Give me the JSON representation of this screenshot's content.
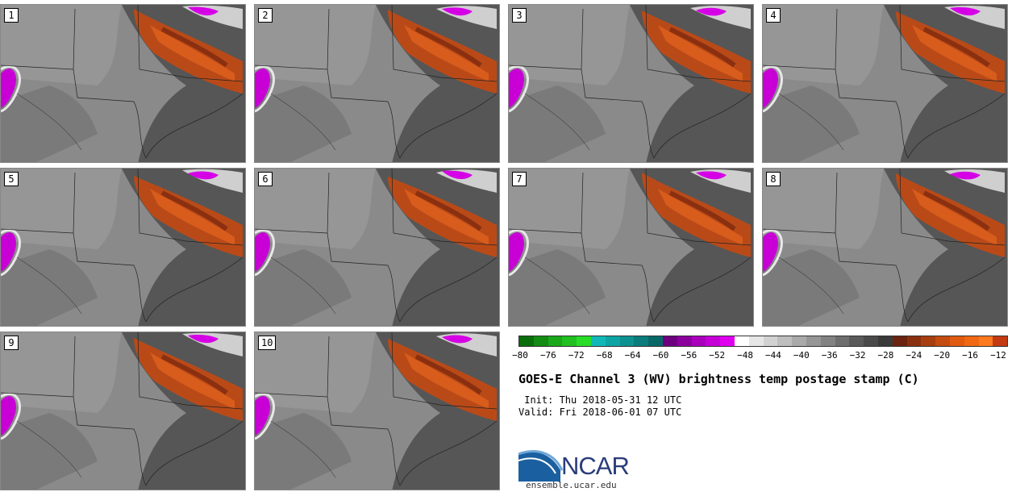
{
  "panels": [
    {
      "label": "1"
    },
    {
      "label": "2"
    },
    {
      "label": "3"
    },
    {
      "label": "4"
    },
    {
      "label": "5"
    },
    {
      "label": "6"
    },
    {
      "label": "7"
    },
    {
      "label": "8"
    },
    {
      "label": "9"
    },
    {
      "label": "10"
    }
  ],
  "colorbar": {
    "ticks": [
      "−80",
      "−76",
      "−72",
      "−68",
      "−64",
      "−60",
      "−56",
      "−52",
      "−48",
      "−44",
      "−40",
      "−36",
      "−32",
      "−28",
      "−24",
      "−20",
      "−16",
      "−12"
    ],
    "colors": [
      "#0a6e0a",
      "#138c13",
      "#1aa81a",
      "#20c020",
      "#28dc28",
      "#12b8b8",
      "#0fa4a4",
      "#0d9090",
      "#0a7c7c",
      "#086868",
      "#6e0080",
      "#8c009e",
      "#aa00bc",
      "#c400d6",
      "#de00ee",
      "#ffffff",
      "#e6e6e6",
      "#d2d2d2",
      "#bebebe",
      "#aaaaaa",
      "#969696",
      "#828282",
      "#6e6e6e",
      "#5a5a5a",
      "#4a4a4a",
      "#3a3a3a",
      "#6a2410",
      "#8a3010",
      "#a83e10",
      "#c44c10",
      "#e05a10",
      "#f06814",
      "#ff7a1e",
      "#c43a12"
    ]
  },
  "title": "GOES-E Channel 3 (WV) brightness temp postage stamp (C)",
  "init": " Init: Thu 2018-05-31 12 UTC",
  "valid": "Valid: Fri 2018-06-01 07 UTC",
  "logo": {
    "text": "NCAR",
    "site": "ensemble.ucar.edu"
  }
}
